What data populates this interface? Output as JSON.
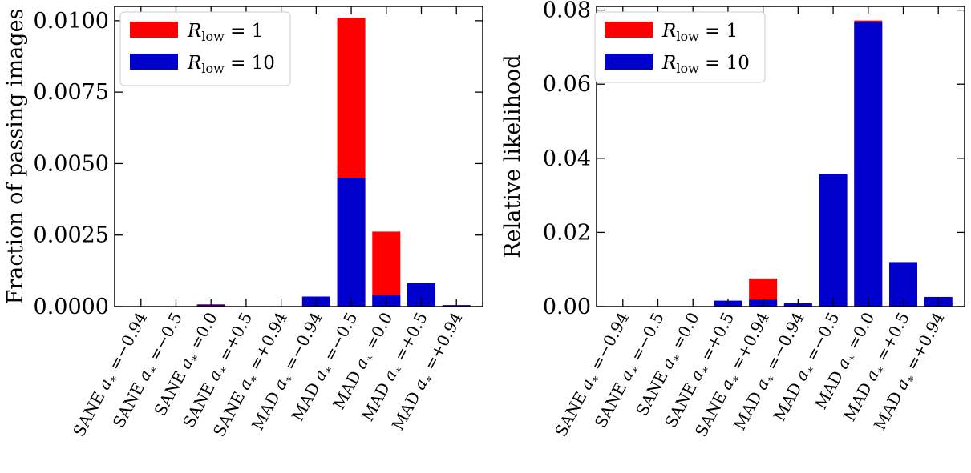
{
  "colors": {
    "r_low_1": "#ff0000",
    "r_low_10": "#0000cc",
    "axis": "#000000",
    "background": "#ffffff"
  },
  "chart_data": [
    {
      "type": "bar",
      "stacked": "overlay",
      "title": "",
      "xlabel": "",
      "ylabel": "Fraction of passing images",
      "ylim": [
        0,
        0.0105
      ],
      "yticks": [
        0.0,
        0.0025,
        0.005,
        0.0075,
        0.01
      ],
      "ytick_labels": [
        "0.0000",
        "0.0025",
        "0.0050",
        "0.0075",
        "0.0100"
      ],
      "grid": false,
      "legend_position": "top-left",
      "categories": [
        "SANE a*=−0.94",
        "SANE a*=−0.5",
        "SANE a*=0.0",
        "SANE a*=+0.5",
        "SANE a*=+0.94",
        "MAD a*=−0.94",
        "MAD a*=−0.5",
        "MAD a*=0.0",
        "MAD a*=+0.5",
        "MAD a*=+0.94"
      ],
      "series": [
        {
          "name": "R_low = 1",
          "legend_main": "R",
          "legend_sub": "low",
          "legend_rest": " = 1",
          "color": "#ff0000",
          "values": [
            0.0,
            0.0,
            8e-05,
            0.0,
            0.0,
            0.00032,
            0.0101,
            0.00262,
            0.00078,
            5e-05
          ]
        },
        {
          "name": "R_low = 10",
          "legend_main": "R",
          "legend_sub": "low",
          "legend_rest": " = 10",
          "color": "#0000cc",
          "values": [
            0.0,
            0.0,
            6e-05,
            0.0,
            0.0,
            0.00035,
            0.0045,
            0.00042,
            0.00082,
            5e-05
          ]
        }
      ]
    },
    {
      "type": "bar",
      "stacked": "overlay",
      "title": "",
      "xlabel": "",
      "ylabel": "Relative likelihood",
      "ylim": [
        0,
        0.081
      ],
      "yticks": [
        0.0,
        0.02,
        0.04,
        0.06,
        0.08
      ],
      "ytick_labels": [
        "0.00",
        "0.02",
        "0.04",
        "0.06",
        "0.08"
      ],
      "grid": false,
      "legend_position": "top-left",
      "categories": [
        "SANE a*=−0.94",
        "SANE a*=−0.5",
        "SANE a*=0.0",
        "SANE a*=+0.5",
        "SANE a*=+0.94",
        "MAD a*=−0.94",
        "MAD a*=−0.5",
        "MAD a*=0.0",
        "MAD a*=+0.5",
        "MAD a*=+0.94"
      ],
      "series": [
        {
          "name": "R_low = 1",
          "legend_main": "R",
          "legend_sub": "low",
          "legend_rest": " = 1",
          "color": "#ff0000",
          "values": [
            0.0,
            0.0,
            0.0,
            0.0012,
            0.0076,
            0.0007,
            0.0355,
            0.0772,
            0.0118,
            0.0025
          ]
        },
        {
          "name": "R_low = 10",
          "legend_main": "R",
          "legend_sub": "low",
          "legend_rest": " = 10",
          "color": "#0000cc",
          "values": [
            0.0,
            0.0,
            0.0,
            0.0016,
            0.0019,
            0.0009,
            0.0357,
            0.0768,
            0.012,
            0.0026
          ]
        }
      ]
    }
  ]
}
